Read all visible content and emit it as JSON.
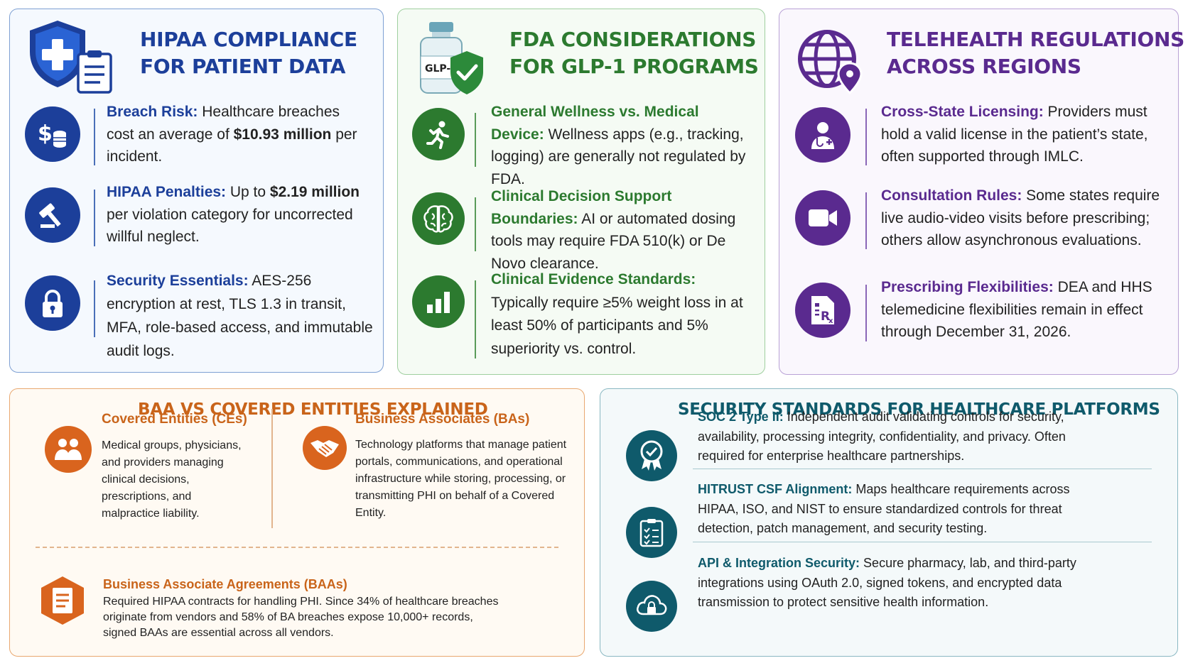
{
  "colors": {
    "blue": "#1c3f9a",
    "green": "#2c7a2f",
    "purple": "#5a2a8f",
    "orange": "#c9641a",
    "teal": "#0f5a6b"
  },
  "hipaa": {
    "title_line1": "HIPAA COMPLIANCE",
    "title_line2": "FOR PATIENT DATA",
    "clipboard_icon": "clipboard-icon",
    "items": [
      {
        "icon": "dollar-coins-icon",
        "label": "Breach Risk:",
        "pre": " Healthcare breaches cost an average of ",
        "bold": "$10.93 million",
        "post": " per incident."
      },
      {
        "icon": "gavel-icon",
        "label": "HIPAA Penalties:",
        "pre": " Up to ",
        "bold": "$2.19 million",
        "post": " per violation category for uncorrected willful neglect."
      },
      {
        "icon": "lock-icon",
        "label": "Security Essentials:",
        "text": " AES-256 encryption at rest, TLS 1.3 in transit, MFA, role-based access, and immutable audit logs."
      }
    ]
  },
  "fda": {
    "title_line1": "FDA CONSIDERATIONS",
    "title_line2": "FOR GLP-1 PROGRAMS",
    "vial_label": "GLP-1",
    "items": [
      {
        "icon": "running-person-icon",
        "label": "General Wellness vs. Medical Device:",
        "text": " Wellness apps (e.g., tracking, logging) are generally not regulated by FDA."
      },
      {
        "icon": "brain-icon",
        "label": "Clinical Decision Support Boundaries:",
        "text": " AI or automated dosing tools may require FDA 510(k) or De Novo clearance."
      },
      {
        "icon": "bar-chart-icon",
        "label": "Clinical Evidence Standards:",
        "text": " Typically require ≥5% weight loss in at least 50% of participants and 5% superiority vs. control."
      }
    ]
  },
  "telehealth": {
    "title_line1": "TELEHEALTH REGULATIONS",
    "title_line2": "ACROSS REGIONS",
    "items": [
      {
        "icon": "doctor-icon",
        "label": "Cross-State Licensing:",
        "text": " Providers must hold a valid license in the patient’s state, often supported through IMLC."
      },
      {
        "icon": "video-camera-icon",
        "label": "Consultation Rules:",
        "text": " Some states require live audio-video visits before prescribing; others allow asynchronous evaluations."
      },
      {
        "icon": "prescription-icon",
        "label": "Prescribing Flexibilities:",
        "text": " DEA and HHS telemedicine flexibilities remain in effect through December 31, 2026."
      }
    ]
  },
  "baa": {
    "title": "BAA VS COVERED ENTITIES EXPLAINED",
    "ce": {
      "icon": "people-icon",
      "heading": "Covered Entities (CEs)",
      "text": "Medical groups, physicians, and providers managing clinical decisions, prescriptions, and malpractice liability."
    },
    "ba": {
      "icon": "handshake-icon",
      "heading": "Business Associates (BAs)",
      "text": "Technology platforms that manage patient portals, communications, and operational infrastructure while storing, processing, or transmitting PHI on behalf of a Covered Entity."
    },
    "baas": {
      "icon": "document-icon",
      "heading": "Business Associate Agreements (BAAs)",
      "text": "Required HIPAA contracts for handling PHI. Since 34% of healthcare breaches originate from vendors and 58% of BA breaches expose 10,000+ records, signed BAAs are essential across all vendors."
    }
  },
  "security": {
    "title": "SECURITY STANDARDS FOR HEALTHCARE PLATFORMS",
    "items": [
      {
        "icon": "award-badge-icon",
        "label": "SOC 2 Type II:",
        "text": " Independent audit validating controls for security, availability, processing integrity, confidentiality, and privacy. Often required for enterprise healthcare partnerships."
      },
      {
        "icon": "checklist-icon",
        "label": "HITRUST CSF Alignment:",
        "text": " Maps healthcare requirements across HIPAA, ISO, and NIST to ensure standardized controls for threat detection, patch management, and security testing."
      },
      {
        "icon": "cloud-lock-icon",
        "label": "API & Integration Security:",
        "text": " Secure pharmacy, lab, and third-party integrations using OAuth 2.0, signed tokens, and encrypted data transmission to protect sensitive health information."
      }
    ]
  }
}
